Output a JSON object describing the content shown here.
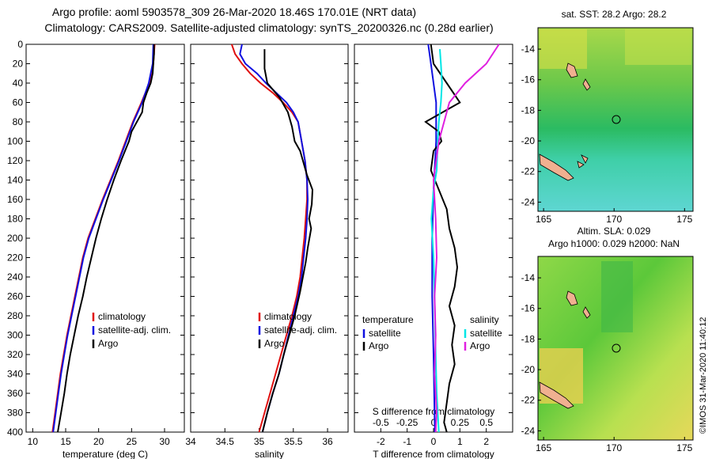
{
  "title_line1": "Argo profile: aoml 5903578_309 26-Mar-2020 18.46S 170.01E (NRT data)",
  "title_line2": "Climatology: CARS2009. Satellite-adjusted climatology: synTS_20200326.nc (0.28d earlier)",
  "watermark": "©IMOS 31-Mar-2020 11:40:12",
  "colors": {
    "climatology": "#e01010",
    "satellite": "#1010e0",
    "argo": "#000000",
    "t_sat": "#1010e0",
    "s_sat": "#00e6e6",
    "s_argo": "#e020e0"
  },
  "chart_data": [
    {
      "type": "line",
      "id": "temperature",
      "xlabel": "temperature (deg C)",
      "ylabel": "",
      "xlim": [
        9,
        33
      ],
      "ylim": [
        400,
        0
      ],
      "xticks": [
        10,
        15,
        20,
        25,
        30
      ],
      "yticks": [
        0,
        20,
        40,
        60,
        80,
        100,
        120,
        140,
        160,
        180,
        200,
        220,
        240,
        260,
        280,
        300,
        320,
        340,
        360,
        380,
        400
      ],
      "legend": [
        "climatology",
        "satellite-adj. clim.",
        "Argo"
      ],
      "series": [
        {
          "name": "climatology",
          "color": "#e01010",
          "points": [
            [
              28.5,
              0
            ],
            [
              28.3,
              20
            ],
            [
              27.7,
              40
            ],
            [
              26.5,
              60
            ],
            [
              25.2,
              80
            ],
            [
              24.1,
              100
            ],
            [
              23,
              120
            ],
            [
              21.8,
              140
            ],
            [
              20.6,
              160
            ],
            [
              19.5,
              180
            ],
            [
              18.4,
              200
            ],
            [
              17.6,
              220
            ],
            [
              17,
              240
            ],
            [
              16.4,
              260
            ],
            [
              15.8,
              280
            ],
            [
              15.2,
              300
            ],
            [
              14.7,
              320
            ],
            [
              14.2,
              340
            ],
            [
              13.8,
              360
            ],
            [
              13.4,
              380
            ],
            [
              13,
              400
            ]
          ]
        },
        {
          "name": "satellite-adj. clim.",
          "color": "#1010e0",
          "points": [
            [
              28.3,
              0
            ],
            [
              28.2,
              20
            ],
            [
              27.6,
              40
            ],
            [
              26.6,
              60
            ],
            [
              25.3,
              80
            ],
            [
              24.2,
              100
            ],
            [
              23.1,
              120
            ],
            [
              21.9,
              140
            ],
            [
              20.7,
              160
            ],
            [
              19.6,
              180
            ],
            [
              18.5,
              200
            ],
            [
              17.7,
              220
            ],
            [
              17.1,
              240
            ],
            [
              16.5,
              260
            ],
            [
              15.9,
              280
            ],
            [
              15.3,
              300
            ],
            [
              14.8,
              320
            ],
            [
              14.3,
              340
            ],
            [
              13.9,
              360
            ],
            [
              13.5,
              380
            ],
            [
              13.1,
              400
            ]
          ]
        },
        {
          "name": "Argo",
          "color": "#000000",
          "points": [
            [
              28.4,
              0
            ],
            [
              28.4,
              10
            ],
            [
              28.3,
              20
            ],
            [
              28.2,
              30
            ],
            [
              27.9,
              40
            ],
            [
              27.3,
              50
            ],
            [
              26.8,
              60
            ],
            [
              26.6,
              70
            ],
            [
              25.8,
              80
            ],
            [
              25,
              90
            ],
            [
              24.6,
              100
            ],
            [
              23.4,
              120
            ],
            [
              22.3,
              140
            ],
            [
              21.3,
              160
            ],
            [
              20.4,
              180
            ],
            [
              19.6,
              200
            ],
            [
              18.9,
              220
            ],
            [
              18.2,
              240
            ],
            [
              17.6,
              260
            ],
            [
              16.9,
              280
            ],
            [
              16.3,
              300
            ],
            [
              15.7,
              320
            ],
            [
              15.2,
              340
            ],
            [
              14.8,
              360
            ],
            [
              14.3,
              380
            ],
            [
              13.8,
              400
            ]
          ]
        }
      ]
    },
    {
      "type": "line",
      "id": "salinity",
      "xlabel": "salinity",
      "ylabel": "",
      "xlim": [
        34,
        36.3
      ],
      "ylim": [
        400,
        0
      ],
      "xticks": [
        34,
        34.5,
        35,
        35.5,
        36
      ],
      "legend": [
        "climatology",
        "satellite-adj. clim.",
        "Argo"
      ],
      "series": [
        {
          "name": "climatology",
          "color": "#e01010",
          "points": [
            [
              34.6,
              0
            ],
            [
              34.65,
              10
            ],
            [
              34.75,
              20
            ],
            [
              34.87,
              30
            ],
            [
              35.02,
              40
            ],
            [
              35.2,
              50
            ],
            [
              35.35,
              60
            ],
            [
              35.48,
              70
            ],
            [
              35.57,
              80
            ],
            [
              35.62,
              100
            ],
            [
              35.67,
              120
            ],
            [
              35.7,
              140
            ],
            [
              35.7,
              160
            ],
            [
              35.68,
              180
            ],
            [
              35.66,
              200
            ],
            [
              35.63,
              220
            ],
            [
              35.6,
              240
            ],
            [
              35.55,
              260
            ],
            [
              35.48,
              280
            ],
            [
              35.4,
              300
            ],
            [
              35.32,
              320
            ],
            [
              35.24,
              340
            ],
            [
              35.16,
              360
            ],
            [
              35.08,
              380
            ],
            [
              35,
              400
            ]
          ]
        },
        {
          "name": "satellite-adj. clim.",
          "color": "#1010e0",
          "points": [
            [
              34.75,
              0
            ],
            [
              34.72,
              10
            ],
            [
              34.8,
              20
            ],
            [
              34.97,
              30
            ],
            [
              35.1,
              40
            ],
            [
              35.25,
              50
            ],
            [
              35.4,
              60
            ],
            [
              35.5,
              70
            ],
            [
              35.57,
              80
            ],
            [
              35.62,
              100
            ],
            [
              35.67,
              120
            ],
            [
              35.7,
              140
            ],
            [
              35.71,
              160
            ],
            [
              35.7,
              180
            ],
            [
              35.68,
              200
            ],
            [
              35.65,
              220
            ],
            [
              35.62,
              240
            ],
            [
              35.57,
              260
            ],
            [
              35.5,
              280
            ],
            [
              35.43,
              300
            ],
            [
              35.36,
              320
            ],
            [
              35.29,
              340
            ],
            [
              35.2,
              360
            ],
            [
              35.12,
              380
            ],
            [
              35.05,
              400
            ]
          ]
        },
        {
          "name": "Argo",
          "color": "#000000",
          "points": [
            [
              35.08,
              5
            ],
            [
              35.08,
              25
            ],
            [
              35.12,
              40
            ],
            [
              35.3,
              55
            ],
            [
              35.42,
              70
            ],
            [
              35.48,
              85
            ],
            [
              35.52,
              100
            ],
            [
              35.6,
              110
            ],
            [
              35.64,
              120
            ],
            [
              35.7,
              135
            ],
            [
              35.78,
              150
            ],
            [
              35.77,
              165
            ],
            [
              35.73,
              180
            ],
            [
              35.76,
              190
            ],
            [
              35.71,
              210
            ],
            [
              35.68,
              225
            ],
            [
              35.64,
              240
            ],
            [
              35.6,
              255
            ],
            [
              35.52,
              280
            ],
            [
              35.44,
              300
            ],
            [
              35.36,
              320
            ],
            [
              35.29,
              340
            ],
            [
              35.2,
              360
            ],
            [
              35.12,
              380
            ],
            [
              35.05,
              400
            ]
          ]
        }
      ]
    },
    {
      "type": "line",
      "id": "differences",
      "xlabel": "T difference from climatology",
      "x2label": "S difference from climatology",
      "xlim": [
        -3,
        3
      ],
      "ylim": [
        400,
        0
      ],
      "xticks": [
        -2,
        -1,
        0,
        1,
        2
      ],
      "xtick_labels": [
        "-2",
        "-1",
        "0",
        "1",
        "2"
      ],
      "x2ticks": [
        -0.5,
        -0.25,
        0,
        0.25,
        0.5
      ],
      "x2tick_labels": [
        "-0.5",
        "-0.25",
        "0",
        "0.25",
        "0.5"
      ],
      "x2lim": [
        -0.75,
        0.75
      ],
      "legend_title_t": "temperature",
      "legend_title_s": "salinity",
      "legend": [
        "satellite",
        "Argo",
        "satellite",
        "Argo"
      ],
      "series": [
        {
          "name": "T satellite",
          "axis": "T",
          "color": "#1010e0",
          "points": [
            [
              -0.2,
              0
            ],
            [
              -0.1,
              20
            ],
            [
              0,
              40
            ],
            [
              0.1,
              60
            ],
            [
              0.1,
              100
            ],
            [
              0,
              150
            ],
            [
              -0.05,
              200
            ],
            [
              -0.05,
              260
            ],
            [
              0,
              320
            ],
            [
              0.05,
              400
            ]
          ]
        },
        {
          "name": "T Argo",
          "axis": "T",
          "color": "#000000",
          "points": [
            [
              -0.1,
              0
            ],
            [
              0,
              20
            ],
            [
              0.5,
              40
            ],
            [
              1.0,
              60
            ],
            [
              -0.3,
              80
            ],
            [
              0.2,
              90
            ],
            [
              0.3,
              100
            ],
            [
              0,
              110
            ],
            [
              -0.1,
              130
            ],
            [
              0.2,
              150
            ],
            [
              0.5,
              170
            ],
            [
              0.6,
              190
            ],
            [
              0.8,
              210
            ],
            [
              0.9,
              230
            ],
            [
              0.8,
              250
            ],
            [
              0.6,
              270
            ],
            [
              0.8,
              290
            ],
            [
              0.7,
              310
            ],
            [
              0.8,
              330
            ],
            [
              0.6,
              350
            ],
            [
              0.5,
              370
            ],
            [
              0.4,
              390
            ],
            [
              0.5,
              400
            ]
          ]
        },
        {
          "name": "S satellite",
          "axis": "S",
          "color": "#00e6e6",
          "points": [
            [
              0.06,
              5
            ],
            [
              0.07,
              20
            ],
            [
              0.08,
              40
            ],
            [
              0.07,
              60
            ],
            [
              0.05,
              80
            ],
            [
              0.04,
              100
            ],
            [
              0.03,
              130
            ],
            [
              0,
              150
            ],
            [
              -0.02,
              180
            ],
            [
              0,
              220
            ],
            [
              0.01,
              260
            ],
            [
              0.02,
              320
            ],
            [
              0.03,
              360
            ],
            [
              0.05,
              400
            ]
          ]
        },
        {
          "name": "S Argo",
          "axis": "S",
          "color": "#e020e0",
          "points": [
            [
              0.62,
              0
            ],
            [
              0.5,
              20
            ],
            [
              0.3,
              40
            ],
            [
              0.15,
              60
            ],
            [
              0.05,
              100
            ],
            [
              0,
              140
            ],
            [
              0.02,
              180
            ],
            [
              0.03,
              220
            ],
            [
              0.01,
              260
            ],
            [
              0.02,
              300
            ],
            [
              0.01,
              340
            ],
            [
              0.03,
              380
            ],
            [
              0.02,
              400
            ]
          ]
        }
      ]
    },
    {
      "type": "heatmap",
      "id": "sst_map",
      "title": "sat. SST: 28.2 Argo: 28.2",
      "xticks": [
        165,
        170,
        175
      ],
      "yticks": [
        -14,
        -16,
        -18,
        -20,
        -22,
        -24
      ],
      "xlim": [
        164.6,
        175.6
      ],
      "ylim": [
        -24.6,
        -12.6
      ],
      "profile_location": [
        170.01,
        -18.46
      ]
    },
    {
      "type": "heatmap",
      "id": "sla_map",
      "title": "Altim. SLA: 0.029",
      "subtitle": "Argo h1000: 0.029 h2000: NaN",
      "xticks": [
        165,
        170,
        175
      ],
      "yticks": [
        -14,
        -16,
        -18,
        -20,
        -22,
        -24
      ],
      "xlim": [
        164.6,
        175.6
      ],
      "ylim": [
        -24.6,
        -12.6
      ],
      "profile_location": [
        170.01,
        -18.46
      ]
    }
  ]
}
